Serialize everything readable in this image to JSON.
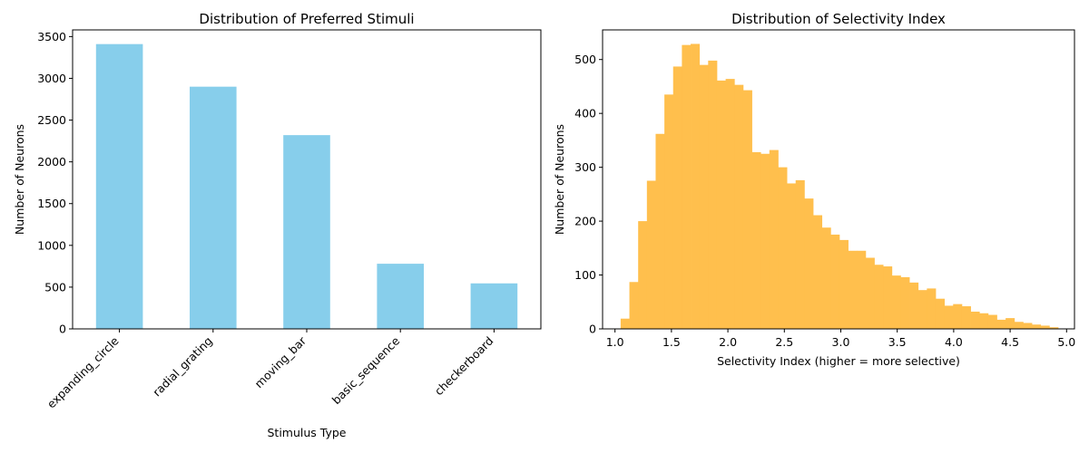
{
  "chart_data": [
    {
      "type": "bar",
      "title": "Distribution of Preferred Stimuli",
      "xlabel": "Stimulus Type",
      "ylabel": "Number of Neurons",
      "categories": [
        "expanding_circle",
        "radial_grating",
        "moving_bar",
        "basic_sequence",
        "checkerboard"
      ],
      "values": [
        3410,
        2900,
        2320,
        780,
        545
      ],
      "ylim": [
        0,
        3580
      ],
      "yticks": [
        0,
        500,
        1000,
        1500,
        2000,
        2500,
        3000,
        3500
      ],
      "color": "#87CEEB",
      "grid": false
    },
    {
      "type": "bar",
      "title": "Distribution of Selectivity Index",
      "xlabel": "Selectivity Index (higher = more selective)",
      "ylabel": "Number of Neurons",
      "bin_start": 1.05,
      "bin_width": 0.0775,
      "values": [
        19,
        87,
        200,
        275,
        362,
        435,
        487,
        527,
        529,
        490,
        498,
        461,
        464,
        453,
        443,
        328,
        325,
        332,
        300,
        270,
        276,
        242,
        211,
        188,
        175,
        165,
        145,
        145,
        132,
        119,
        116,
        99,
        96,
        86,
        72,
        75,
        56,
        43,
        46,
        42,
        32,
        29,
        26,
        17,
        20,
        13,
        11,
        8,
        6,
        3
      ],
      "xlim": [
        0.89,
        5.07
      ],
      "ylim": [
        0,
        555
      ],
      "xticks": [
        1.0,
        1.5,
        2.0,
        2.5,
        3.0,
        3.5,
        4.0,
        4.5,
        5.0
      ],
      "yticks": [
        0,
        100,
        200,
        300,
        400,
        500
      ],
      "color": "#FFBF4D",
      "grid": false
    }
  ]
}
